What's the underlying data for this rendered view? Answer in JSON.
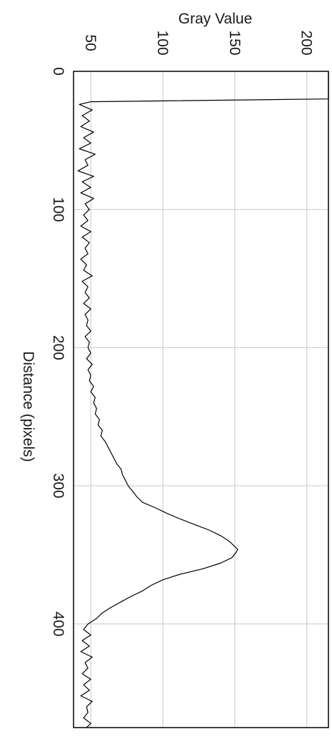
{
  "chart_data": {
    "type": "line",
    "orientation": "rotated-90-clockwise",
    "title": "",
    "xlabel": "Distance (pixels)",
    "ylabel": "Gray Value",
    "xlim": [
      0,
      475
    ],
    "ylim": [
      38,
      215
    ],
    "xticks": [
      "0",
      "100",
      "200",
      "300",
      "400"
    ],
    "yticks": [
      "50",
      "100",
      "150",
      "200"
    ],
    "grid": true,
    "colors": {
      "line": "#000000",
      "grid": "#c8c8c8",
      "frame": "#000000"
    },
    "series": [
      {
        "name": "",
        "x": [
          0,
          10,
          20,
          22,
          24,
          28,
          32,
          36,
          40,
          44,
          48,
          52,
          56,
          60,
          64,
          68,
          72,
          76,
          80,
          84,
          88,
          92,
          96,
          100,
          104,
          108,
          112,
          116,
          120,
          124,
          128,
          132,
          136,
          140,
          144,
          148,
          152,
          156,
          160,
          164,
          168,
          172,
          176,
          180,
          184,
          188,
          192,
          196,
          200,
          204,
          208,
          212,
          216,
          220,
          224,
          228,
          232,
          236,
          240,
          244,
          248,
          252,
          256,
          260,
          264,
          268,
          272,
          276,
          280,
          284,
          288,
          292,
          296,
          300,
          304,
          308,
          312,
          316,
          320,
          324,
          328,
          332,
          336,
          340,
          344,
          346,
          348,
          352,
          356,
          360,
          364,
          368,
          372,
          376,
          380,
          384,
          388,
          392,
          396,
          400,
          404,
          408,
          412,
          416,
          420,
          424,
          428,
          432,
          436,
          440,
          444,
          448,
          452,
          456,
          460,
          464,
          468,
          472,
          475
        ],
        "values": [
          215,
          215,
          215,
          50,
          42,
          51,
          44,
          49,
          43,
          52,
          45,
          50,
          42,
          53,
          46,
          48,
          41,
          52,
          44,
          50,
          43,
          52,
          46,
          49,
          45,
          48,
          43,
          50,
          44,
          49,
          46,
          48,
          43,
          47,
          45,
          51,
          44,
          48,
          46,
          49,
          45,
          50,
          46,
          48,
          47,
          50,
          46,
          49,
          48,
          50,
          47,
          51,
          48,
          50,
          49,
          52,
          50,
          53,
          52,
          54,
          53,
          56,
          55,
          58,
          57,
          60,
          62,
          64,
          66,
          68,
          71,
          72,
          74,
          76,
          79,
          82,
          86,
          95,
          103,
          112,
          122,
          132,
          140,
          146,
          150,
          152,
          151,
          148,
          140,
          128,
          112,
          100,
          92,
          86,
          78,
          71,
          64,
          58,
          54,
          48,
          45,
          50,
          44,
          49,
          43,
          51,
          46,
          48,
          44,
          50,
          45,
          49,
          43,
          51,
          47,
          48,
          45,
          50,
          47
        ]
      }
    ]
  }
}
